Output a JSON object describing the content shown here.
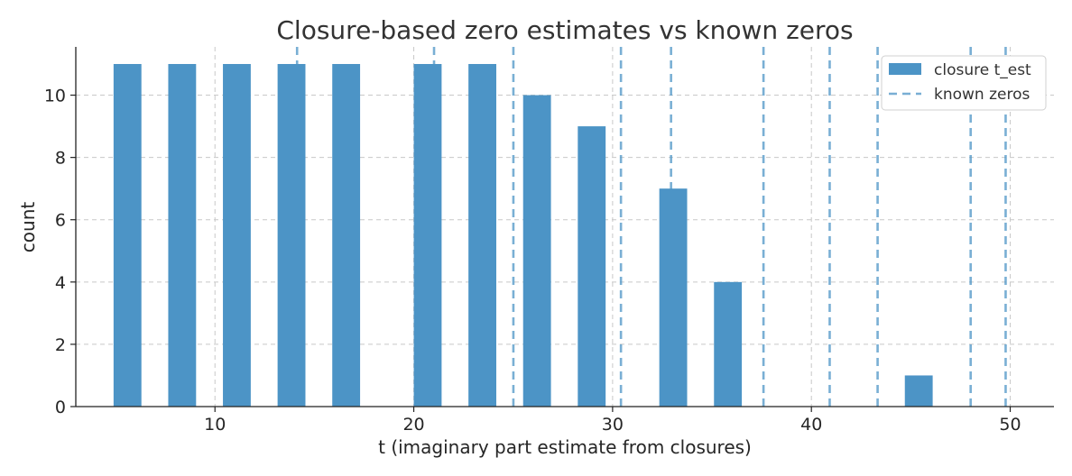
{
  "chart_data": {
    "type": "bar",
    "title": "Closure-based zero estimates vs known zeros",
    "xlabel": "t (imaginary part estimate from closures)",
    "ylabel": "count",
    "xlim": [
      3,
      52.2
    ],
    "ylim": [
      0,
      11.55
    ],
    "x_ticks": [
      10,
      20,
      30,
      40,
      50
    ],
    "y_ticks": [
      0,
      2,
      4,
      6,
      8,
      10
    ],
    "grid": true,
    "legend_position": "top-right",
    "bar_width": 1.4,
    "bars": {
      "name": "closure t_est",
      "x": [
        5.6,
        8.35,
        11.1,
        13.85,
        16.6,
        20.7,
        23.45,
        26.2,
        28.95,
        33.05,
        35.8,
        45.4
      ],
      "values": [
        11,
        11,
        11,
        11,
        11,
        11,
        11,
        10,
        9,
        7,
        4,
        1
      ]
    },
    "known_zeros": {
      "name": "known zeros",
      "x": [
        14.13,
        21.02,
        25.01,
        30.42,
        32.94,
        37.59,
        40.92,
        43.33,
        48.01,
        49.77
      ]
    },
    "colors": {
      "bar": "#4c94c6",
      "zero_line": "#4c94c6"
    }
  }
}
